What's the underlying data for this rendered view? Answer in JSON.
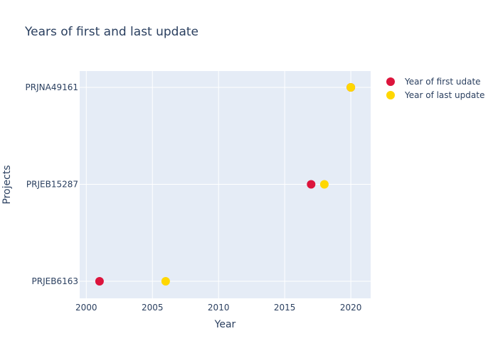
{
  "chart_data": {
    "type": "scatter",
    "title": "Years of first and last update",
    "xlabel": "Year",
    "ylabel": "Projects",
    "categories": [
      "PRJEB6163",
      "PRJEB15287",
      "PRJNA49161"
    ],
    "xlim": [
      1999.5,
      2021.5
    ],
    "x_ticks": [
      2000,
      2005,
      2010,
      2015,
      2020
    ],
    "x_tick_labels": [
      "2000",
      "2005",
      "2010",
      "2015",
      "2020"
    ],
    "grid": true,
    "legend_position": "top-right",
    "plot_background": "#e5ecf6",
    "series": [
      {
        "name": "Year of first udate",
        "color": "#dc143c",
        "points": [
          {
            "category": "PRJEB6163",
            "x": 2001
          },
          {
            "category": "PRJEB15287",
            "x": 2017
          },
          {
            "category": "PRJNA49161",
            "x": 2020
          }
        ]
      },
      {
        "name": "Year of last update",
        "color": "#ffd700",
        "points": [
          {
            "category": "PRJEB6163",
            "x": 2006
          },
          {
            "category": "PRJEB15287",
            "x": 2018
          },
          {
            "category": "PRJNA49161",
            "x": 2020
          }
        ]
      }
    ]
  }
}
